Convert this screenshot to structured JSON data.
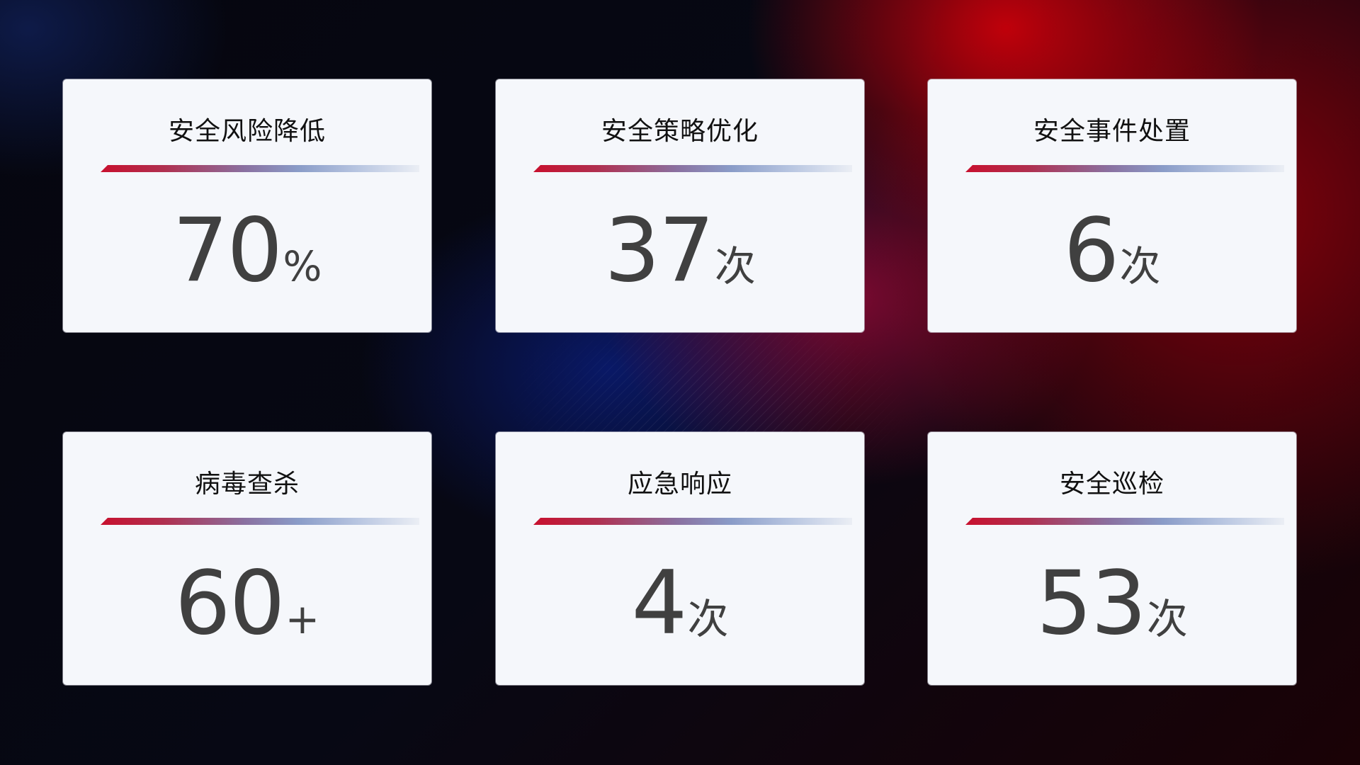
{
  "cards": [
    {
      "title": "安全风险降低",
      "value": "70",
      "unit": "%"
    },
    {
      "title": "安全策略优化",
      "value": "37",
      "unit": "次"
    },
    {
      "title": "安全事件处置",
      "value": "6",
      "unit": "次"
    },
    {
      "title": "病毒查杀",
      "value": "60",
      "unit": "+"
    },
    {
      "title": "应急响应",
      "value": "4",
      "unit": "次"
    },
    {
      "title": "安全巡检",
      "value": "53",
      "unit": "次"
    }
  ],
  "colors": {
    "accent_red": "#c8102e",
    "accent_blue": "#8a9cc8",
    "card_bg": "#f5f7fb",
    "value_text": "#404040"
  }
}
